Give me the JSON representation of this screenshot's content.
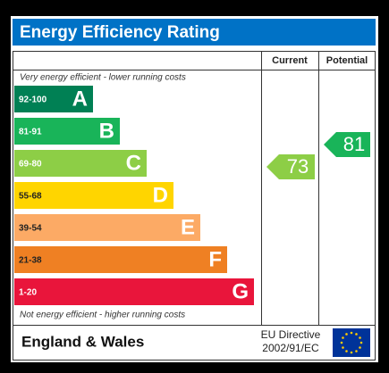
{
  "title": "Energy Efficiency Rating",
  "columns": {
    "current": "Current",
    "potential": "Potential"
  },
  "top_note": "Very energy efficient - lower running costs",
  "bottom_note": "Not energy efficient - higher running costs",
  "bands": [
    {
      "range": "92-100",
      "letter": "A",
      "color": "#008054"
    },
    {
      "range": "81-91",
      "letter": "B",
      "color": "#19b459"
    },
    {
      "range": "69-80",
      "letter": "C",
      "color": "#8dce46"
    },
    {
      "range": "55-68",
      "letter": "D",
      "color": "#ffd500"
    },
    {
      "range": "39-54",
      "letter": "E",
      "color": "#fcaa65"
    },
    {
      "range": "21-38",
      "letter": "F",
      "color": "#ef8023"
    },
    {
      "range": "1-20",
      "letter": "G",
      "color": "#e9153b"
    }
  ],
  "current": {
    "value": 73
  },
  "potential": {
    "value": 81
  },
  "footer": {
    "region": "England & Wales",
    "directive_line1": "EU Directive",
    "directive_line2": "2002/91/EC"
  }
}
